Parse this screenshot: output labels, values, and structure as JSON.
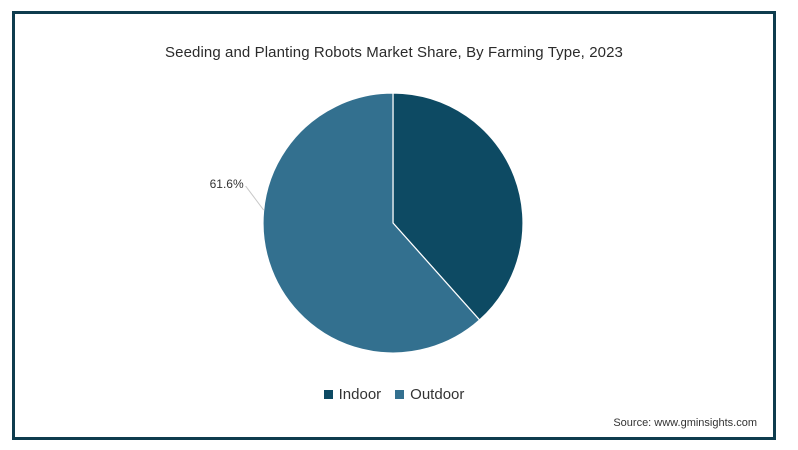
{
  "chart_data": {
    "type": "pie",
    "title": "Seeding and Planting Robots Market Share, By Farming Type, 2023",
    "slices": [
      {
        "name": "Indoor",
        "value": 38.4,
        "color": "#0d4a63",
        "label": ""
      },
      {
        "name": "Outdoor",
        "value": 61.6,
        "color": "#33708f",
        "label": "61.6%"
      }
    ],
    "legend_position": "bottom",
    "source": "Source: www.gminsights.com"
  }
}
